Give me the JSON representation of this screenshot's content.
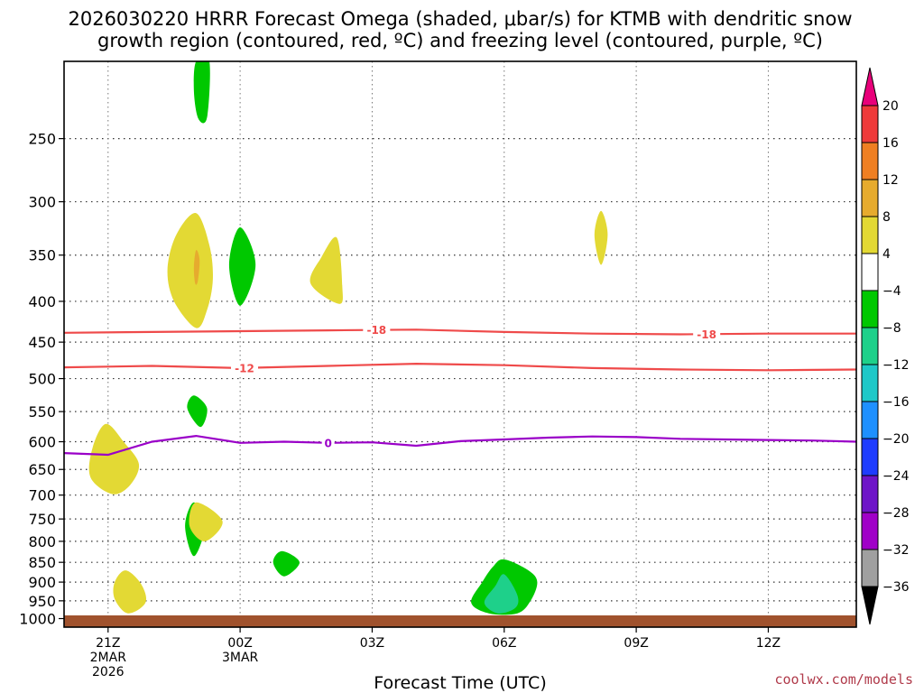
{
  "chart_data": {
    "type": "heatmap",
    "title_line1": "2026030220 HRRR Forecast Omega (shaded, μbar/s) for KTMB with dendritic snow",
    "title_line2": "growth region (contoured, red, ºC) and freezing level (contoured, purple, ºC)",
    "xlabel": "Forecast Time (UTC)",
    "ylabel": "",
    "credit": "coolwx.com/models",
    "y_axis": {
      "units": "hPa",
      "ylim": [
        200,
        1025
      ],
      "scale": "log",
      "ticks": [
        250,
        300,
        350,
        400,
        450,
        500,
        550,
        600,
        650,
        700,
        750,
        800,
        850,
        900,
        950,
        1000
      ]
    },
    "x_axis": {
      "units": "hours since 2026-03-02 20Z",
      "xlim": [
        0,
        18
      ],
      "ticks": [
        {
          "hour": 1,
          "lines": [
            "21Z",
            "2MAR",
            "2026"
          ]
        },
        {
          "hour": 4,
          "lines": [
            "00Z",
            "3MAR"
          ]
        },
        {
          "hour": 7,
          "lines": [
            "03Z"
          ]
        },
        {
          "hour": 10,
          "lines": [
            "06Z"
          ]
        },
        {
          "hour": 13,
          "lines": [
            "09Z"
          ]
        },
        {
          "hour": 16,
          "lines": [
            "12Z"
          ]
        }
      ]
    },
    "colorbar": {
      "labels": [
        "20",
        "16",
        "12",
        "8",
        "4",
        "−4",
        "−8",
        "−12",
        "−16",
        "−20",
        "−24",
        "−28",
        "−32",
        "−36"
      ],
      "colors": [
        "#e8007a",
        "#ee3a3a",
        "#ef7f22",
        "#e6ab2e",
        "#e3d934",
        "#ffffff",
        "#00c800",
        "#1ed08a",
        "#1ec8c8",
        "#1e90ff",
        "#1e3cff",
        "#6e14c8",
        "#a000c8",
        "#a0a0a0",
        "#000000"
      ]
    },
    "omega_regions": [
      {
        "label": "green",
        "color": "#00c800",
        "points": [
          [
            3.0,
            200
          ],
          [
            3.3,
            200
          ],
          [
            3.25,
            235
          ],
          [
            3.05,
            236
          ],
          [
            2.95,
            218
          ]
        ]
      },
      {
        "label": "yellow",
        "color": "#e3d934",
        "points": [
          [
            3.0,
            310
          ],
          [
            3.3,
            340
          ],
          [
            3.38,
            375
          ],
          [
            3.25,
            410
          ],
          [
            3.0,
            432
          ],
          [
            2.5,
            400
          ],
          [
            2.35,
            365
          ],
          [
            2.55,
            330
          ]
        ]
      },
      {
        "label": "orange",
        "color": "#e6ab2e",
        "points": [
          [
            3.0,
            345
          ],
          [
            3.08,
            355
          ],
          [
            3.04,
            377
          ],
          [
            2.98,
            380
          ],
          [
            2.95,
            362
          ]
        ]
      },
      {
        "label": "green",
        "color": "#00c800",
        "points": [
          [
            4.0,
            323
          ],
          [
            4.35,
            360
          ],
          [
            4.0,
            405
          ],
          [
            3.75,
            360
          ]
        ]
      },
      {
        "label": "yellow",
        "color": "#e3d934",
        "points": [
          [
            6.2,
            333
          ],
          [
            6.32,
            382
          ],
          [
            6.25,
            403
          ],
          [
            5.6,
            380
          ],
          [
            5.85,
            352
          ]
        ]
      },
      {
        "label": "yellow",
        "color": "#e3d934",
        "points": [
          [
            12.2,
            308
          ],
          [
            12.35,
            330
          ],
          [
            12.2,
            360
          ],
          [
            12.05,
            330
          ]
        ]
      },
      {
        "label": "green",
        "color": "#00c800",
        "points": [
          [
            2.95,
            525
          ],
          [
            3.25,
            545
          ],
          [
            3.1,
            575
          ],
          [
            2.8,
            545
          ]
        ]
      },
      {
        "label": "yellow",
        "color": "#e3d934",
        "points": [
          [
            0.95,
            570
          ],
          [
            1.35,
            600
          ],
          [
            1.7,
            640
          ],
          [
            1.5,
            680
          ],
          [
            1.1,
            698
          ],
          [
            0.6,
            665
          ],
          [
            0.65,
            610
          ]
        ]
      },
      {
        "label": "green",
        "color": "#00c800",
        "points": [
          [
            2.95,
            715
          ],
          [
            3.2,
            765
          ],
          [
            2.95,
            835
          ],
          [
            2.75,
            765
          ]
        ]
      },
      {
        "label": "yellow",
        "color": "#e3d934",
        "points": [
          [
            3.0,
            715
          ],
          [
            3.6,
            755
          ],
          [
            3.2,
            800
          ],
          [
            2.85,
            765
          ]
        ]
      },
      {
        "label": "green",
        "color": "#00c800",
        "points": [
          [
            4.95,
            823
          ],
          [
            5.35,
            850
          ],
          [
            5.0,
            885
          ],
          [
            4.75,
            850
          ]
        ]
      },
      {
        "label": "yellow",
        "color": "#e3d934",
        "points": [
          [
            1.4,
            870
          ],
          [
            1.75,
            905
          ],
          [
            1.85,
            955
          ],
          [
            1.45,
            985
          ],
          [
            1.15,
            945
          ],
          [
            1.15,
            900
          ]
        ]
      },
      {
        "label": "green",
        "color": "#00c800",
        "points": [
          [
            10.0,
            843
          ],
          [
            10.55,
            870
          ],
          [
            10.75,
            900
          ],
          [
            10.6,
            950
          ],
          [
            10.3,
            985
          ],
          [
            9.65,
            985
          ],
          [
            9.25,
            955
          ],
          [
            9.5,
            900
          ],
          [
            9.75,
            860
          ]
        ]
      },
      {
        "label": "teal",
        "color": "#1ed08a",
        "points": [
          [
            10.0,
            880
          ],
          [
            10.3,
            935
          ],
          [
            10.25,
            970
          ],
          [
            9.85,
            985
          ],
          [
            9.55,
            955
          ],
          [
            9.8,
            910
          ]
        ]
      }
    ],
    "contours": [
      {
        "name": "-18",
        "color": "#ef4a4a",
        "label": "-18",
        "label_hours": [
          7.1,
          14.6
        ],
        "points": [
          [
            0,
            438
          ],
          [
            2,
            437
          ],
          [
            4,
            436
          ],
          [
            6,
            435
          ],
          [
            8,
            434
          ],
          [
            10,
            437
          ],
          [
            12,
            439
          ],
          [
            14,
            440
          ],
          [
            16,
            439
          ],
          [
            18,
            439
          ]
        ]
      },
      {
        "name": "-12",
        "color": "#ef4a4a",
        "label": "-12",
        "label_hours": [
          4.1
        ],
        "points": [
          [
            0,
            484
          ],
          [
            1,
            483
          ],
          [
            2,
            482
          ],
          [
            4,
            485
          ],
          [
            6,
            482
          ],
          [
            8,
            479
          ],
          [
            10,
            481
          ],
          [
            12,
            485
          ],
          [
            14,
            487
          ],
          [
            16,
            488
          ],
          [
            18,
            487
          ]
        ]
      },
      {
        "name": "0",
        "color": "#9a00c8",
        "label": "0",
        "label_hours": [
          6.0
        ],
        "points": [
          [
            0,
            620
          ],
          [
            1,
            623
          ],
          [
            2,
            600
          ],
          [
            3,
            590
          ],
          [
            4,
            602
          ],
          [
            5,
            600
          ],
          [
            6,
            602
          ],
          [
            7,
            601
          ],
          [
            8,
            607
          ],
          [
            9,
            599
          ],
          [
            10,
            596
          ],
          [
            11,
            593
          ],
          [
            12,
            591
          ],
          [
            13,
            592
          ],
          [
            14,
            595
          ],
          [
            15,
            596
          ],
          [
            16,
            597
          ],
          [
            17,
            598
          ],
          [
            18,
            600
          ]
        ]
      }
    ]
  }
}
